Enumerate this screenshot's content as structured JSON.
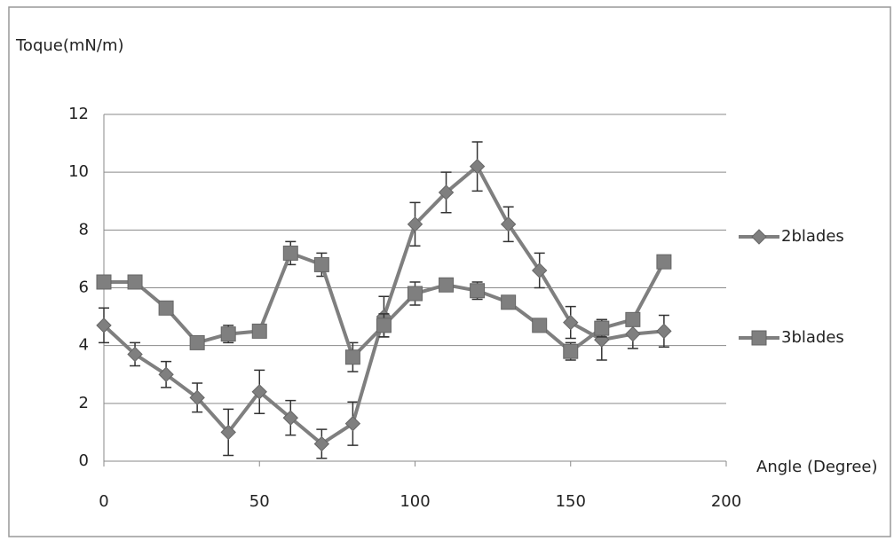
{
  "chart_data": {
    "type": "line",
    "y_axis_label": "Toque(mN/m)",
    "x_axis_label": "Angle (Degree)",
    "x": [
      0,
      10,
      20,
      30,
      40,
      50,
      60,
      70,
      80,
      90,
      100,
      110,
      120,
      130,
      140,
      150,
      160,
      170,
      180
    ],
    "series": [
      {
        "name": "2blades",
        "color": "#7f7f7f",
        "marker": "diamond",
        "values": [
          4.7,
          3.7,
          3.0,
          2.2,
          1.0,
          2.4,
          1.5,
          0.6,
          1.3,
          5.0,
          8.2,
          9.3,
          10.2,
          8.2,
          6.6,
          4.8,
          4.2,
          4.4,
          4.5
        ],
        "errors": [
          0.6,
          0.4,
          0.45,
          0.5,
          0.8,
          0.75,
          0.6,
          0.5,
          0.75,
          0.7,
          0.75,
          0.7,
          0.85,
          0.6,
          0.6,
          0.55,
          0.7,
          0.5,
          0.55
        ]
      },
      {
        "name": "3blades",
        "color": "#7f7f7f",
        "marker": "square",
        "values": [
          6.2,
          6.2,
          5.3,
          4.1,
          4.4,
          4.5,
          7.2,
          6.8,
          3.6,
          4.7,
          5.8,
          6.1,
          5.9,
          5.5,
          4.7,
          3.8,
          4.6,
          4.9,
          6.9
        ],
        "errors": [
          0.2,
          0.2,
          0.2,
          0.2,
          0.3,
          0.2,
          0.4,
          0.4,
          0.5,
          0.4,
          0.4,
          0.2,
          0.3,
          0.2,
          0.2,
          0.3,
          0.3,
          0.2,
          0.2
        ]
      }
    ],
    "xlim": [
      0,
      200
    ],
    "xticks": [
      0,
      50,
      100,
      150,
      200
    ],
    "ylim": [
      0,
      12
    ],
    "yticks": [
      0,
      2,
      4,
      6,
      8,
      10,
      12
    ],
    "grid": true,
    "legend": "right"
  }
}
